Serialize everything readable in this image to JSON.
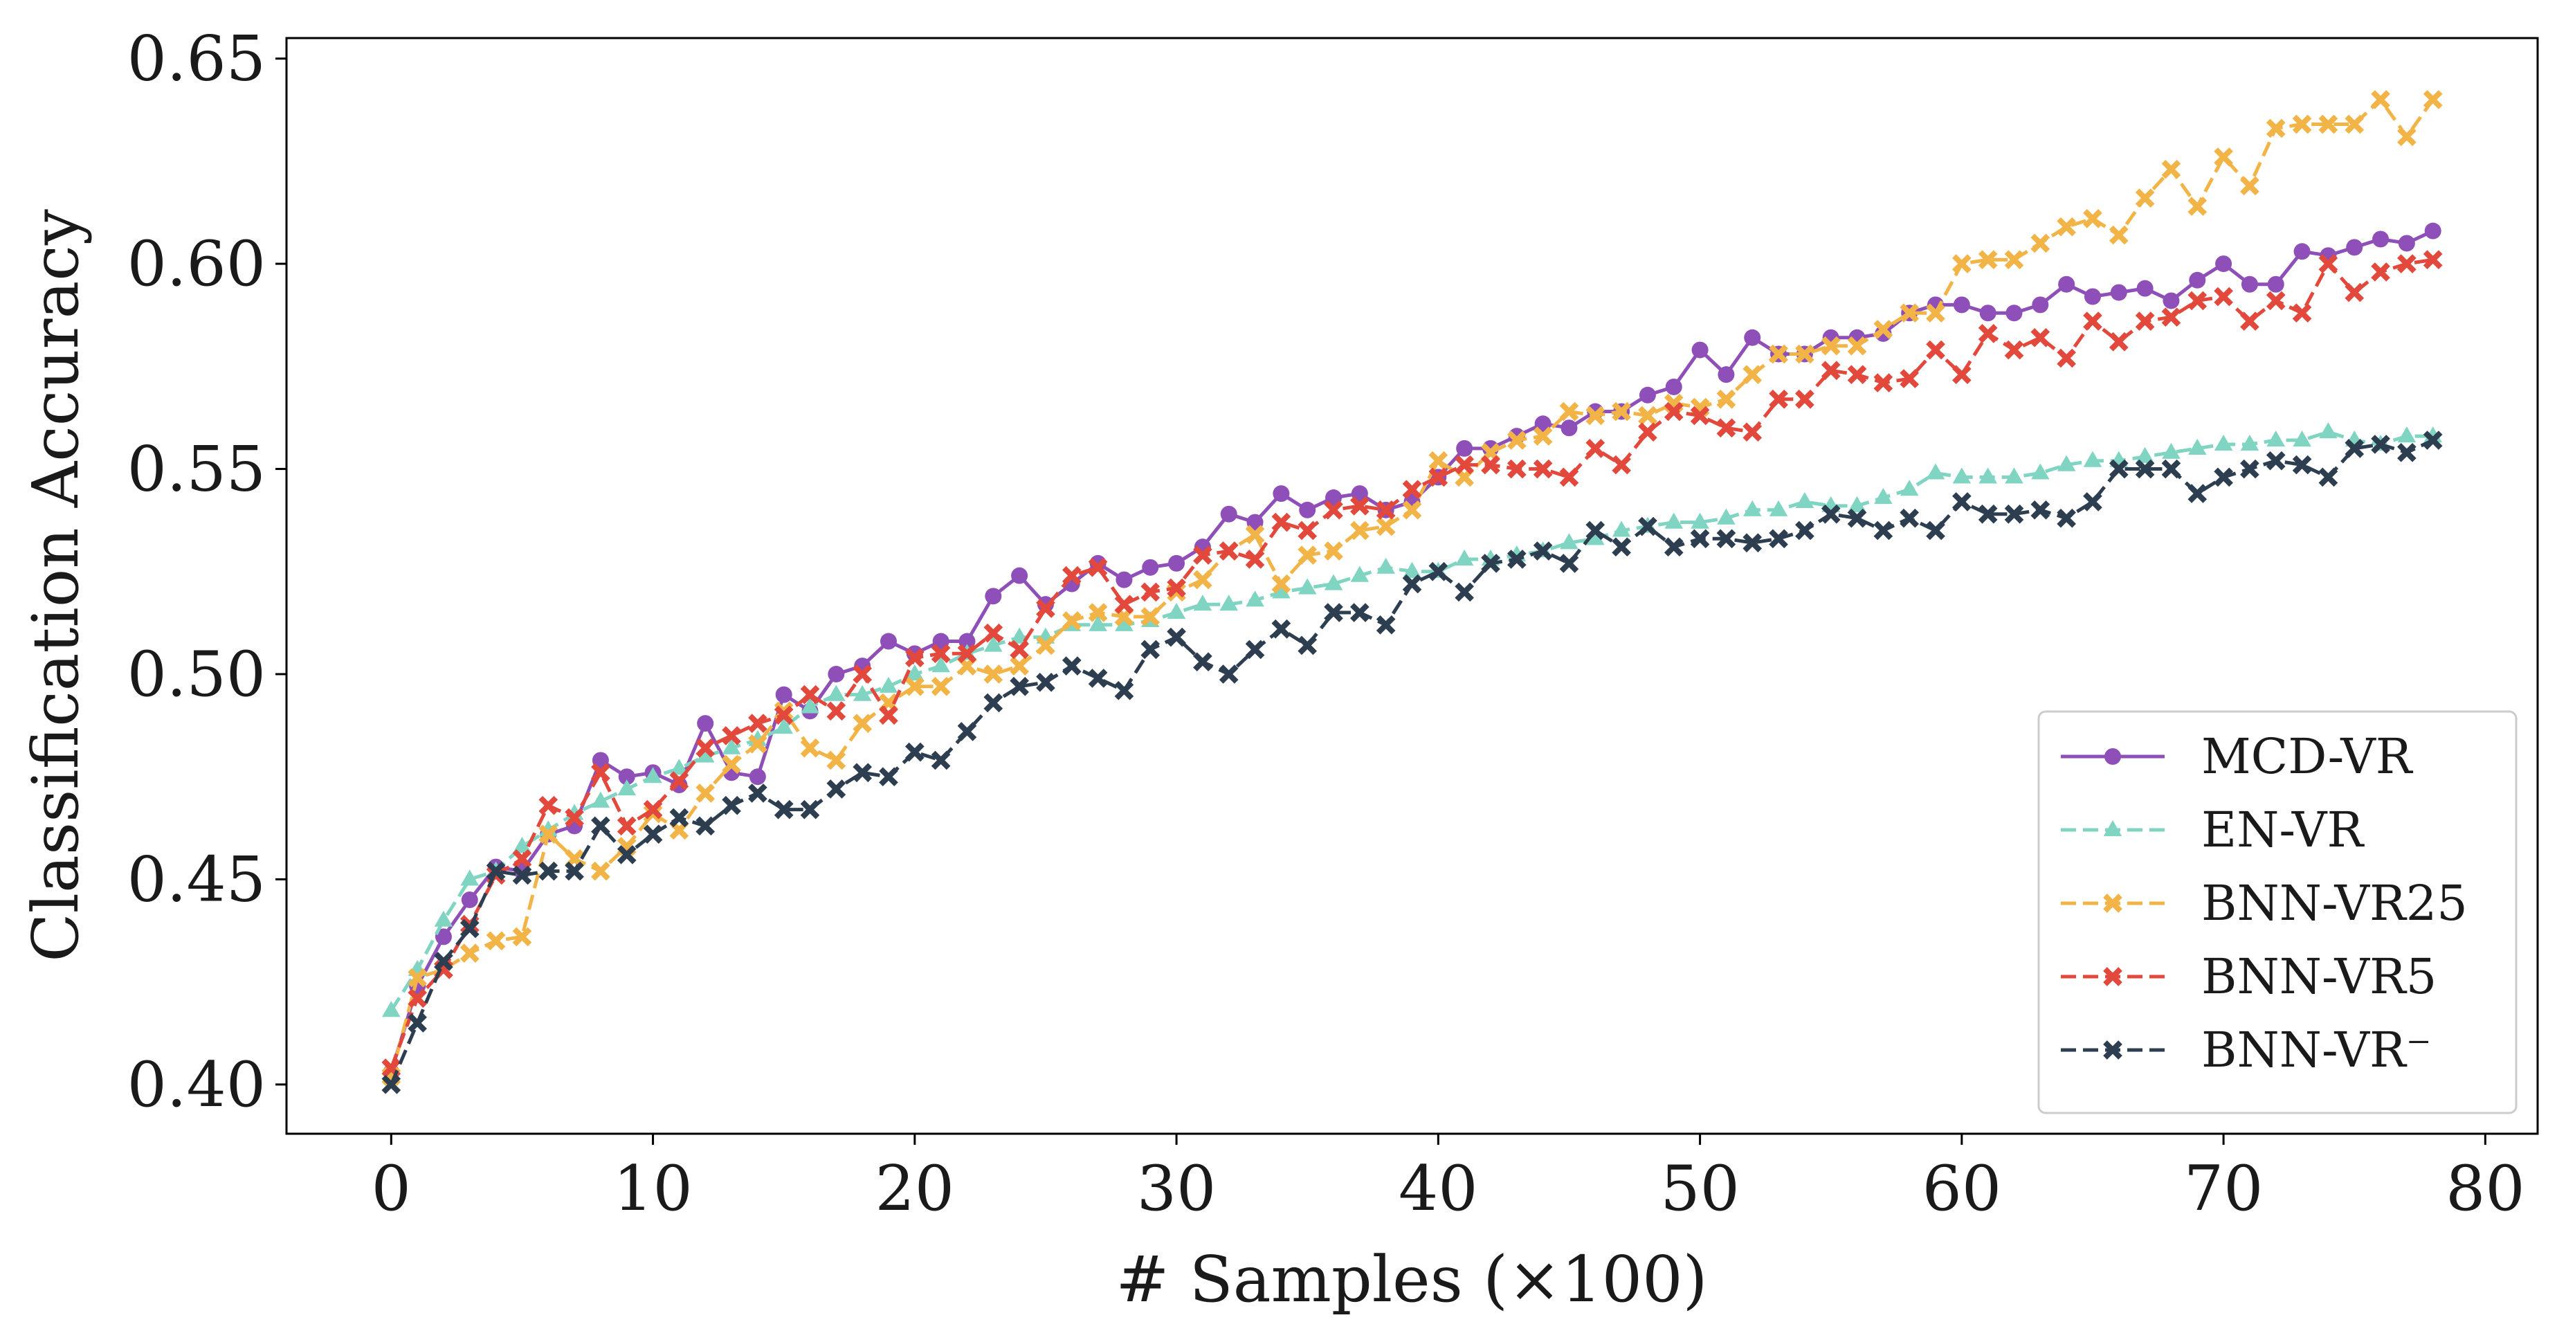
{
  "chart_data": {
    "type": "line",
    "title": "",
    "xlabel": "# Samples (×100)",
    "ylabel": "Classification Accuracy",
    "xlim": [
      -4,
      82
    ],
    "ylim": [
      0.388,
      0.655
    ],
    "xticks": [
      0,
      10,
      20,
      30,
      40,
      50,
      60,
      70,
      80
    ],
    "xtick_labels": [
      "0",
      "10",
      "20",
      "30",
      "40",
      "50",
      "60",
      "70",
      "80"
    ],
    "yticks": [
      0.4,
      0.45,
      0.5,
      0.55,
      0.6,
      0.65
    ],
    "ytick_labels": [
      "0.40",
      "0.45",
      "0.50",
      "0.55",
      "0.60",
      "0.65"
    ],
    "grid": false,
    "legend_position": "bottom-right",
    "x": [
      0,
      1,
      2,
      3,
      4,
      5,
      6,
      7,
      8,
      9,
      10,
      11,
      12,
      13,
      14,
      15,
      16,
      17,
      18,
      19,
      20,
      21,
      22,
      23,
      24,
      25,
      26,
      27,
      28,
      29,
      30,
      31,
      32,
      33,
      34,
      35,
      36,
      37,
      38,
      39,
      40,
      41,
      42,
      43,
      44,
      45,
      46,
      47,
      48,
      49,
      50,
      51,
      52,
      53,
      54,
      55,
      56,
      57,
      58,
      59,
      60,
      61,
      62,
      63,
      64,
      65,
      66,
      67,
      68,
      69,
      70,
      71,
      72,
      73,
      74,
      75,
      76,
      77,
      78
    ],
    "series": [
      {
        "name": "MCD-VR",
        "color": "#8e4fb8",
        "dash": "solid",
        "marker": "circle",
        "values": [
          0.403,
          0.424,
          0.436,
          0.445,
          0.453,
          0.452,
          0.461,
          0.463,
          0.479,
          0.475,
          0.476,
          0.473,
          0.488,
          0.476,
          0.475,
          0.495,
          0.491,
          0.5,
          0.502,
          0.508,
          0.505,
          0.508,
          0.508,
          0.519,
          0.524,
          0.517,
          0.522,
          0.527,
          0.523,
          0.526,
          0.527,
          0.531,
          0.539,
          0.537,
          0.544,
          0.54,
          0.543,
          0.544,
          0.54,
          0.542,
          0.548,
          0.555,
          0.555,
          0.558,
          0.561,
          0.56,
          0.564,
          0.564,
          0.568,
          0.57,
          0.579,
          0.573,
          0.582,
          0.578,
          0.578,
          0.582,
          0.582,
          0.583,
          0.588,
          0.59,
          0.59,
          0.588,
          0.588,
          0.59,
          0.595,
          0.592,
          0.593,
          0.594,
          0.591,
          0.596,
          0.6,
          0.595,
          0.595,
          0.603,
          0.602,
          0.604,
          0.606,
          0.605,
          0.608
        ]
      },
      {
        "name": "EN-VR",
        "color": "#7fd4c2",
        "dash": "dashed",
        "marker": "triangle",
        "values": [
          0.418,
          0.428,
          0.44,
          0.45,
          0.452,
          0.458,
          0.462,
          0.466,
          0.469,
          0.472,
          0.475,
          0.477,
          0.48,
          0.482,
          0.484,
          0.487,
          0.492,
          0.495,
          0.495,
          0.497,
          0.5,
          0.502,
          0.505,
          0.507,
          0.509,
          0.509,
          0.512,
          0.512,
          0.512,
          0.513,
          0.515,
          0.517,
          0.517,
          0.518,
          0.52,
          0.521,
          0.522,
          0.524,
          0.526,
          0.525,
          0.525,
          0.528,
          0.528,
          0.529,
          0.53,
          0.532,
          0.533,
          0.535,
          0.536,
          0.537,
          0.537,
          0.538,
          0.54,
          0.54,
          0.542,
          0.541,
          0.541,
          0.543,
          0.545,
          0.549,
          0.548,
          0.548,
          0.548,
          0.549,
          0.551,
          0.552,
          0.552,
          0.553,
          0.554,
          0.555,
          0.556,
          0.556,
          0.557,
          0.557,
          0.559,
          0.557,
          0.556,
          0.558,
          0.558
        ]
      },
      {
        "name": "BNN-VR25",
        "color": "#f2b446",
        "dash": "dashed",
        "marker": "x",
        "values": [
          0.402,
          0.426,
          0.428,
          0.432,
          0.435,
          0.436,
          0.461,
          0.455,
          0.452,
          0.458,
          0.466,
          0.462,
          0.471,
          0.478,
          0.483,
          0.491,
          0.482,
          0.479,
          0.488,
          0.493,
          0.497,
          0.497,
          0.502,
          0.5,
          0.502,
          0.507,
          0.513,
          0.515,
          0.514,
          0.514,
          0.52,
          0.523,
          0.53,
          0.534,
          0.522,
          0.529,
          0.53,
          0.535,
          0.536,
          0.54,
          0.552,
          0.548,
          0.554,
          0.557,
          0.558,
          0.564,
          0.563,
          0.564,
          0.563,
          0.566,
          0.565,
          0.567,
          0.573,
          0.578,
          0.578,
          0.58,
          0.58,
          0.584,
          0.588,
          0.588,
          0.6,
          0.601,
          0.601,
          0.605,
          0.609,
          0.611,
          0.607,
          0.616,
          0.623,
          0.614,
          0.626,
          0.619,
          0.633,
          0.634,
          0.634,
          0.634,
          0.64,
          0.631,
          0.64
        ]
      },
      {
        "name": "BNN-VR5",
        "color": "#e2483c",
        "dash": "dashed",
        "marker": "x",
        "values": [
          0.404,
          0.421,
          0.428,
          0.439,
          0.451,
          0.455,
          0.468,
          0.465,
          0.476,
          0.463,
          0.467,
          0.474,
          0.482,
          0.485,
          0.488,
          0.49,
          0.495,
          0.491,
          0.5,
          0.49,
          0.504,
          0.505,
          0.505,
          0.51,
          0.506,
          0.516,
          0.524,
          0.526,
          0.517,
          0.52,
          0.521,
          0.529,
          0.53,
          0.528,
          0.537,
          0.535,
          0.54,
          0.541,
          0.54,
          0.545,
          0.548,
          0.551,
          0.551,
          0.55,
          0.55,
          0.548,
          0.555,
          0.551,
          0.559,
          0.564,
          0.563,
          0.56,
          0.559,
          0.567,
          0.567,
          0.574,
          0.573,
          0.571,
          0.572,
          0.579,
          0.573,
          0.583,
          0.579,
          0.582,
          0.577,
          0.586,
          0.581,
          0.586,
          0.587,
          0.591,
          0.592,
          0.586,
          0.591,
          0.588,
          0.6,
          0.593,
          0.598,
          0.6,
          0.601
        ]
      },
      {
        "name": "BNN-VR⁻",
        "color": "#2c3e50",
        "dash": "dashed",
        "marker": "x",
        "values": [
          0.4,
          0.415,
          0.43,
          0.438,
          0.452,
          0.451,
          0.452,
          0.452,
          0.463,
          0.456,
          0.461,
          0.465,
          0.463,
          0.468,
          0.471,
          0.467,
          0.467,
          0.472,
          0.476,
          0.475,
          0.481,
          0.479,
          0.486,
          0.493,
          0.497,
          0.498,
          0.502,
          0.499,
          0.496,
          0.506,
          0.509,
          0.503,
          0.5,
          0.506,
          0.511,
          0.507,
          0.515,
          0.515,
          0.512,
          0.522,
          0.525,
          0.52,
          0.527,
          0.528,
          0.53,
          0.527,
          0.535,
          0.531,
          0.536,
          0.531,
          0.533,
          0.533,
          0.532,
          0.533,
          0.535,
          0.539,
          0.538,
          0.535,
          0.538,
          0.535,
          0.542,
          0.539,
          0.539,
          0.54,
          0.538,
          0.542,
          0.55,
          0.55,
          0.55,
          0.544,
          0.548,
          0.55,
          0.552,
          0.551,
          0.548,
          0.555,
          0.556,
          0.554,
          0.557
        ]
      }
    ]
  }
}
